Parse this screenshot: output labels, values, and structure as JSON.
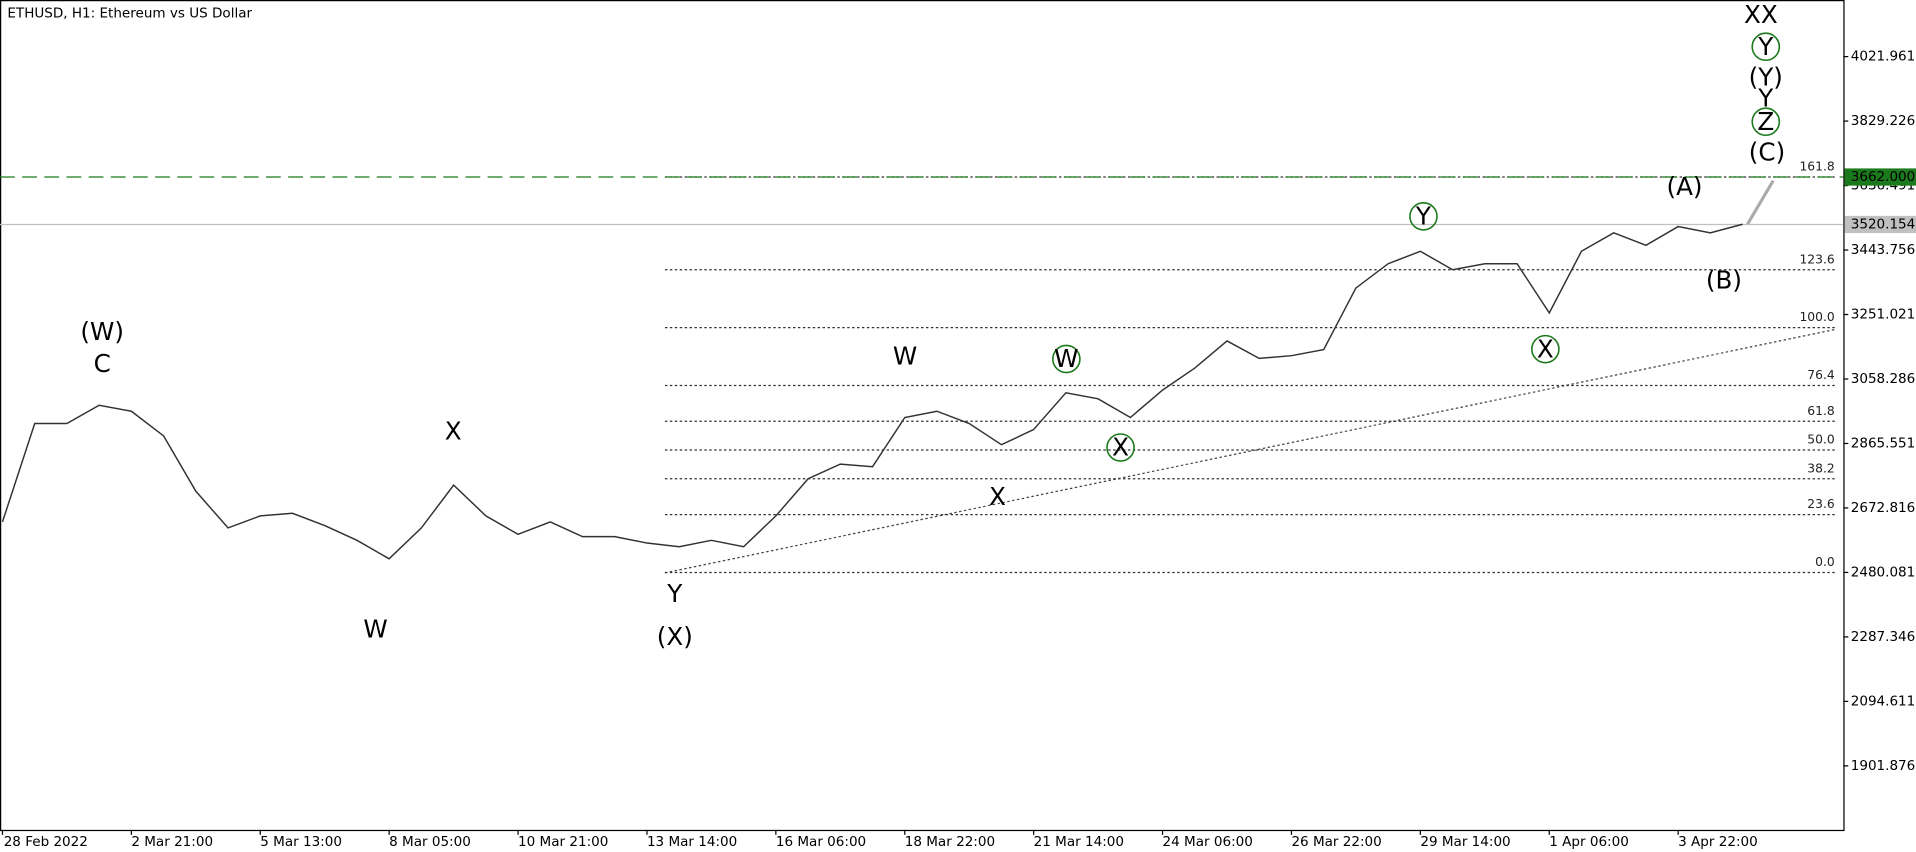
{
  "chart_data": {
    "type": "line",
    "title": "ETHUSD, H1:  Ethereum vs US Dollar",
    "categories": [
      "28 Feb 2022",
      null,
      null,
      null,
      "2 Mar 21:00",
      null,
      null,
      null,
      "5 Mar 13:00",
      null,
      null,
      null,
      "8 Mar 05:00",
      null,
      null,
      null,
      "10 Mar 21:00",
      null,
      null,
      null,
      "13 Mar 14:00",
      null,
      null,
      null,
      "16 Mar 06:00",
      null,
      null,
      null,
      "18 Mar 22:00",
      null,
      null,
      null,
      "21 Mar 14:00",
      null,
      null,
      null,
      "24 Mar 06:00",
      null,
      null,
      null,
      "26 Mar 22:00",
      null,
      null,
      null,
      "29 Mar 14:00",
      null,
      null,
      null,
      "1 Apr 06:00",
      null,
      null,
      null,
      "3 Apr 22:00",
      null,
      null
    ],
    "series": [
      {
        "color": "#333333",
        "values": [
          2631,
          2925,
          2925,
          2980,
          2962,
          2888,
          2723,
          2613,
          2649,
          2657,
          2620,
          2576,
          2521,
          2613,
          2741,
          2649,
          2594,
          2631,
          2587,
          2587,
          2568,
          2557,
          2576,
          2557,
          2649,
          2760,
          2804,
          2796,
          2943,
          2962,
          2925,
          2862,
          2907,
          3017,
          2999,
          2943,
          3025,
          3091,
          3172,
          3120,
          3128,
          3146,
          3330,
          3403,
          3440,
          3385,
          3403,
          3403,
          3256,
          3440,
          3495,
          3458,
          3514,
          3495,
          3521
        ]
      }
    ],
    "ylim": [
      1710.6,
      4183.8
    ],
    "yticks": [
      1901.876,
      2094.611,
      2287.346,
      2480.081,
      2672.816,
      2865.551,
      3058.286,
      3251.021,
      3443.756,
      3636.491,
      3829.226,
      4021.961
    ],
    "current_price": 3520.154,
    "target_price": {
      "value": 3662,
      "label": "3662.000",
      "color": "#1b7a1b"
    },
    "fibonacci": [
      {
        "label": "0.0",
        "price": 2480
      },
      {
        "label": "23.6",
        "price": 2653
      },
      {
        "label": "38.2",
        "price": 2760
      },
      {
        "label": "50.0",
        "price": 2846
      },
      {
        "label": "61.8",
        "price": 2932
      },
      {
        "label": "76.4",
        "price": 3039
      },
      {
        "label": "100.0",
        "price": 3212
      },
      {
        "label": "123.6",
        "price": 3385
      },
      {
        "label": "161.8",
        "price": 3662
      }
    ],
    "wave_labels": [
      {
        "text": "(W)",
        "color": "#1f2a7a"
      },
      {
        "text": "C",
        "color": "#8b1a1a"
      },
      {
        "text": "X",
        "color": "#8b1a1a"
      },
      {
        "text": "W",
        "color": "#8b1a1a"
      },
      {
        "text": "Y",
        "color": "#8b1a1a"
      },
      {
        "text": "(X)",
        "color": "#1f2a7a"
      },
      {
        "text": "W",
        "color": "#8b1a1a"
      },
      {
        "text": "X",
        "color": "#8b1a1a"
      },
      {
        "text": "W",
        "color": "#1b7a1b",
        "circled": true
      },
      {
        "text": "X",
        "color": "#1b7a1b",
        "circled": true
      },
      {
        "text": "Y",
        "color": "#1b7a1b",
        "circled": true
      },
      {
        "text": "X",
        "color": "#1b7a1b",
        "circled": true
      },
      {
        "text": "(A)",
        "color": "#1f2a7a"
      },
      {
        "text": "(B)",
        "color": "#1f2a7a"
      },
      {
        "text": "(C)",
        "color": "#1f2a7a"
      },
      {
        "text": "Z",
        "color": "#1b7a1b",
        "circled": true
      },
      {
        "text": "Y",
        "color": "#8b1a1a"
      },
      {
        "text": "(Y)",
        "color": "#1f2a7a"
      },
      {
        "text": "Y",
        "color": "#1b7a1b",
        "circled": true
      },
      {
        "text": "XX",
        "color": "#8b1a1a"
      }
    ]
  }
}
